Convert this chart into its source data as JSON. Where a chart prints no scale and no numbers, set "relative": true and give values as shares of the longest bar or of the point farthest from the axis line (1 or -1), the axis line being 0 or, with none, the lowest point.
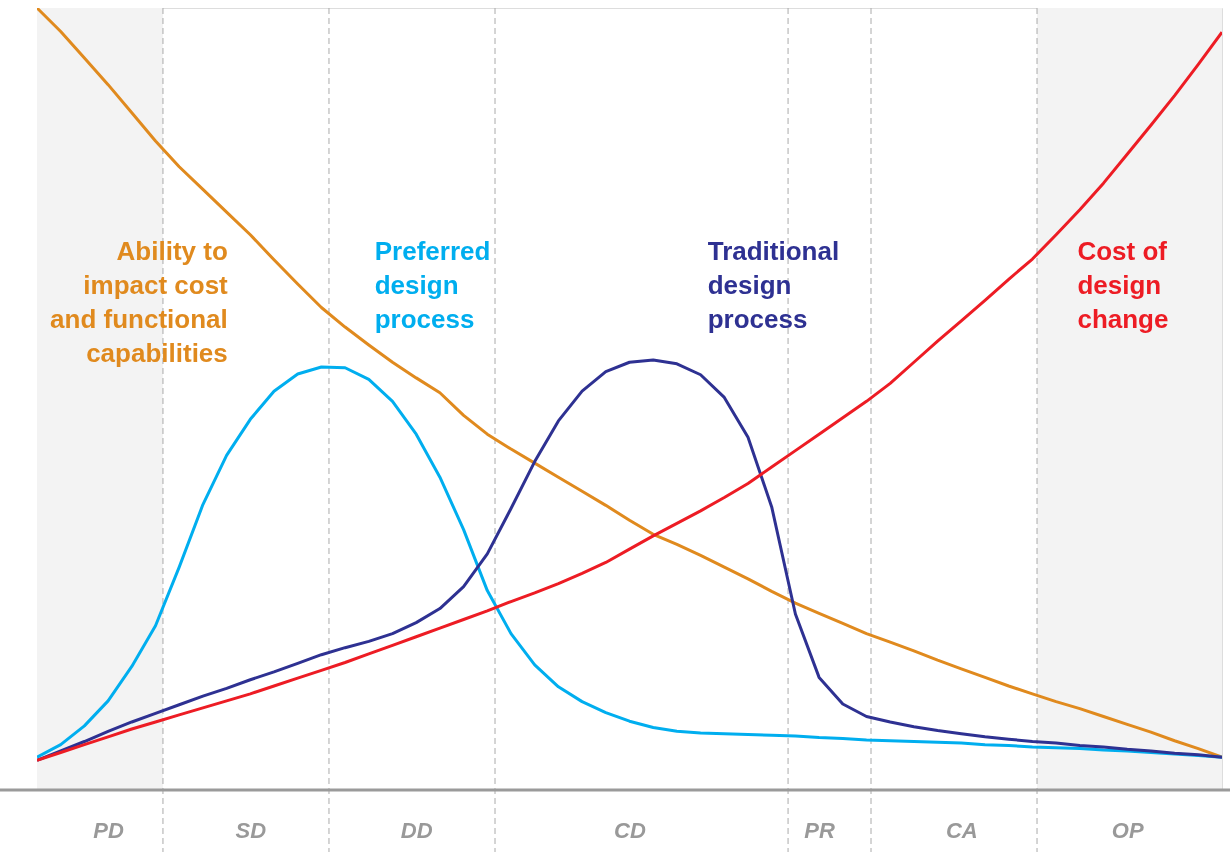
{
  "chart_data": {
    "type": "line",
    "relative": true,
    "tick_labels": "x",
    "grid": false,
    "marker": "none",
    "line_style": "solid",
    "categories": [
      null,
      null,
      null,
      "PD",
      null,
      null,
      null,
      null,
      null,
      "SD",
      null,
      null,
      null,
      null,
      null,
      null,
      "DD",
      null,
      null,
      null,
      null,
      null,
      null,
      null,
      null,
      "CD",
      null,
      null,
      null,
      null,
      null,
      null,
      null,
      "PR",
      null,
      null,
      null,
      null,
      null,
      "CA",
      null,
      null,
      null,
      null,
      null,
      null,
      "OP",
      null,
      null,
      null,
      null
    ],
    "series": [
      {
        "name": "Ability to impact cost and functional capabilities",
        "color": "#e08a1e",
        "values": [
          1.0,
          0.97,
          0.936,
          0.902,
          0.866,
          0.83,
          0.797,
          0.768,
          0.739,
          0.71,
          0.678,
          0.647,
          0.617,
          0.592,
          0.569,
          0.547,
          0.527,
          0.508,
          0.479,
          0.455,
          0.436,
          0.418,
          0.4,
          0.382,
          0.364,
          0.345,
          0.327,
          0.314,
          0.3,
          0.285,
          0.27,
          0.254,
          0.239,
          0.226,
          0.213,
          0.2,
          0.189,
          0.178,
          0.166,
          0.155,
          0.144,
          0.133,
          0.123,
          0.113,
          0.104,
          0.094,
          0.084,
          0.074,
          0.063,
          0.053,
          0.042
        ]
      },
      {
        "name": "Preferred design process",
        "color": "#00aeef",
        "values": [
          0.042,
          0.058,
          0.082,
          0.114,
          0.158,
          0.21,
          0.285,
          0.365,
          0.428,
          0.474,
          0.51,
          0.532,
          0.541,
          0.54,
          0.525,
          0.497,
          0.455,
          0.4,
          0.333,
          0.255,
          0.2,
          0.16,
          0.132,
          0.113,
          0.099,
          0.088,
          0.08,
          0.075,
          0.073,
          0.072,
          0.071,
          0.07,
          0.069,
          0.067,
          0.066,
          0.064,
          0.063,
          0.062,
          0.061,
          0.06,
          0.058,
          0.057,
          0.055,
          0.054,
          0.053,
          0.051,
          0.05,
          0.048,
          0.046,
          0.044,
          0.042
        ]
      },
      {
        "name": "Traditional design process",
        "color": "#2e3192",
        "values": [
          0.038,
          0.05,
          0.062,
          0.075,
          0.087,
          0.098,
          0.109,
          0.12,
          0.13,
          0.141,
          0.151,
          0.162,
          0.173,
          0.182,
          0.19,
          0.2,
          0.214,
          0.232,
          0.26,
          0.302,
          0.36,
          0.42,
          0.472,
          0.51,
          0.535,
          0.547,
          0.55,
          0.545,
          0.531,
          0.502,
          0.451,
          0.362,
          0.225,
          0.144,
          0.11,
          0.094,
          0.087,
          0.081,
          0.076,
          0.072,
          0.068,
          0.065,
          0.062,
          0.06,
          0.057,
          0.055,
          0.052,
          0.05,
          0.047,
          0.045,
          0.042
        ]
      },
      {
        "name": "Cost of design change",
        "color": "#ed1c24",
        "values": [
          0.038,
          0.048,
          0.058,
          0.068,
          0.078,
          0.087,
          0.096,
          0.105,
          0.114,
          0.123,
          0.133,
          0.143,
          0.153,
          0.163,
          0.174,
          0.185,
          0.196,
          0.207,
          0.218,
          0.229,
          0.241,
          0.252,
          0.264,
          0.277,
          0.291,
          0.308,
          0.325,
          0.341,
          0.357,
          0.374,
          0.392,
          0.413,
          0.434,
          0.455,
          0.476,
          0.497,
          0.52,
          0.547,
          0.574,
          0.6,
          0.626,
          0.653,
          0.679,
          0.71,
          0.742,
          0.776,
          0.813,
          0.85,
          0.888,
          0.928,
          0.969
        ]
      }
    ]
  }
}
